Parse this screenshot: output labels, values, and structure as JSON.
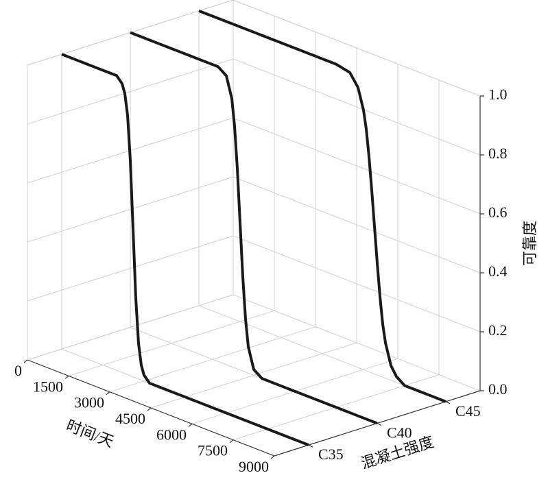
{
  "chart_data": {
    "type": "line3d",
    "x_label": "时间/天",
    "z_label": "可靠度",
    "depth_label": "混凝土强度",
    "x": [
      0,
      500,
      1000,
      1500,
      2000,
      2200,
      2300,
      2400,
      2500,
      2600,
      2700,
      2800,
      2900,
      3000,
      3200,
      3500,
      3700,
      3800,
      3900,
      4000,
      4100,
      4200,
      4300,
      4500,
      4800,
      5000,
      5500,
      5800,
      6000,
      6100,
      6200,
      6300,
      6400,
      6500,
      6600,
      6700,
      6800,
      7000,
      7200,
      7500,
      8000,
      8500,
      9000
    ],
    "series": [
      {
        "name": "C35",
        "color": "#1a1a1a",
        "values": [
          1,
          1,
          1,
          1,
          1,
          0.98,
          0.95,
          0.88,
          0.73,
          0.5,
          0.27,
          0.12,
          0.05,
          0.02,
          0,
          0,
          0,
          0,
          0,
          0,
          0,
          0,
          0,
          0,
          0,
          0,
          0,
          0,
          0,
          0,
          0,
          0,
          0,
          0,
          0,
          0,
          0,
          0,
          0,
          0,
          0,
          0,
          0
        ]
      },
      {
        "name": "C40",
        "color": "#1a1a1a",
        "values": [
          1,
          1,
          1,
          1,
          1,
          1,
          1,
          1,
          1,
          1,
          1,
          1,
          1,
          1,
          1,
          0.98,
          0.91,
          0.82,
          0.68,
          0.5,
          0.32,
          0.18,
          0.09,
          0.02,
          0,
          0,
          0,
          0,
          0,
          0,
          0,
          0,
          0,
          0,
          0,
          0,
          0,
          0,
          0,
          0,
          0,
          0,
          0
        ]
      },
      {
        "name": "C45",
        "color": "#1a1a1a",
        "values": [
          1,
          1,
          1,
          1,
          1,
          1,
          1,
          1,
          1,
          1,
          1,
          1,
          1,
          1,
          1,
          1,
          1,
          1,
          1,
          1,
          1,
          1,
          1,
          1,
          1,
          1,
          0.99,
          0.95,
          0.88,
          0.82,
          0.73,
          0.62,
          0.5,
          0.38,
          0.27,
          0.18,
          0.12,
          0.05,
          0.02,
          0,
          0,
          0,
          0
        ]
      }
    ],
    "xlim": [
      0,
      9000
    ],
    "xticks": [
      0,
      1500,
      3000,
      4500,
      6000,
      7500,
      9000
    ],
    "zlim": [
      0,
      1
    ],
    "zticks": [
      {
        "value": 0,
        "label": "0.0"
      },
      {
        "value": 0.2,
        "label": "0.2"
      },
      {
        "value": 0.4,
        "label": "0.4"
      },
      {
        "value": 0.6,
        "label": "0.6"
      },
      {
        "value": 0.8,
        "label": "0.8"
      },
      {
        "value": 1,
        "label": "1.0"
      }
    ],
    "grid": true
  }
}
